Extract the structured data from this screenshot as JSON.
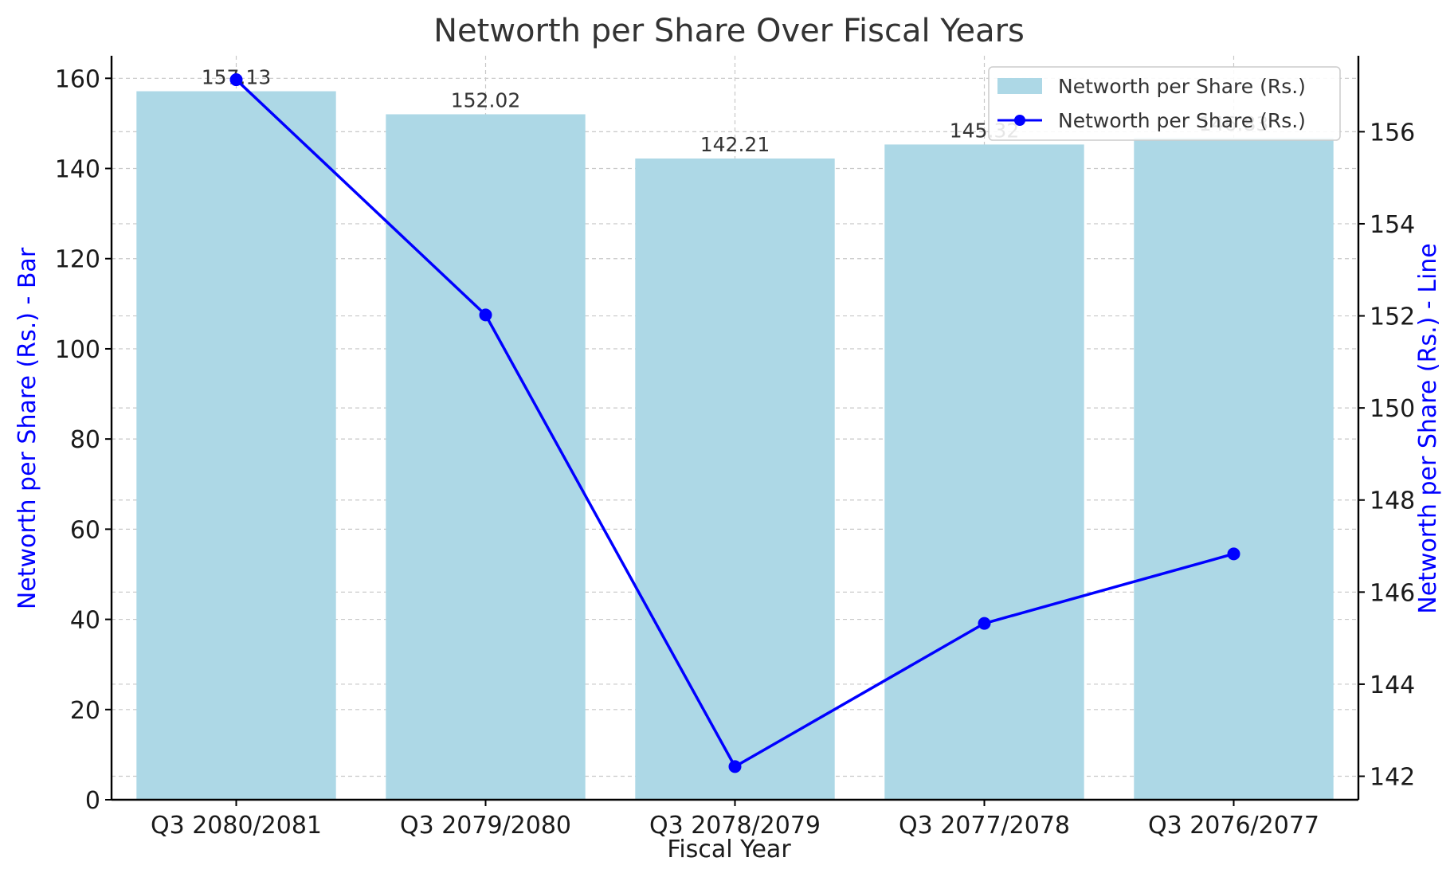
{
  "chart_data": {
    "type": "bar",
    "title": "Networth per Share Over Fiscal Years",
    "xlabel": "Fiscal Year",
    "ylabel_left": "Networth per Share (Rs.) - Bar",
    "ylabel_right": "Networth per Share (Rs.) - Line",
    "categories": [
      "Q3 2080/2081",
      "Q3 2079/2080",
      "Q3 2078/2079",
      "Q3 2077/2078",
      "Q3 2076/2077"
    ],
    "series": [
      {
        "name": "Networth per Share (Rs.)",
        "type": "bar",
        "axis": "left",
        "color": "#add8e6",
        "values": [
          157.13,
          152.02,
          142.21,
          145.32,
          146.83
        ],
        "data_labels": [
          "157.13",
          "152.02",
          "142.21",
          "145.32",
          "146.83"
        ]
      },
      {
        "name": "Networth per Share (Rs.)",
        "type": "line",
        "axis": "right",
        "color": "#0000ff",
        "values": [
          157.13,
          152.02,
          142.21,
          145.32,
          146.83
        ]
      }
    ],
    "ylim_left": [
      0,
      165
    ],
    "yticks_left": [
      0,
      20,
      40,
      60,
      80,
      100,
      120,
      140,
      160
    ],
    "ylim_right": [
      141.49,
      157.65
    ],
    "yticks_right": [
      142,
      144,
      146,
      148,
      150,
      152,
      154,
      156
    ],
    "grid": true,
    "legend_position": "top-right",
    "axis_label_color": "#0000ff"
  }
}
